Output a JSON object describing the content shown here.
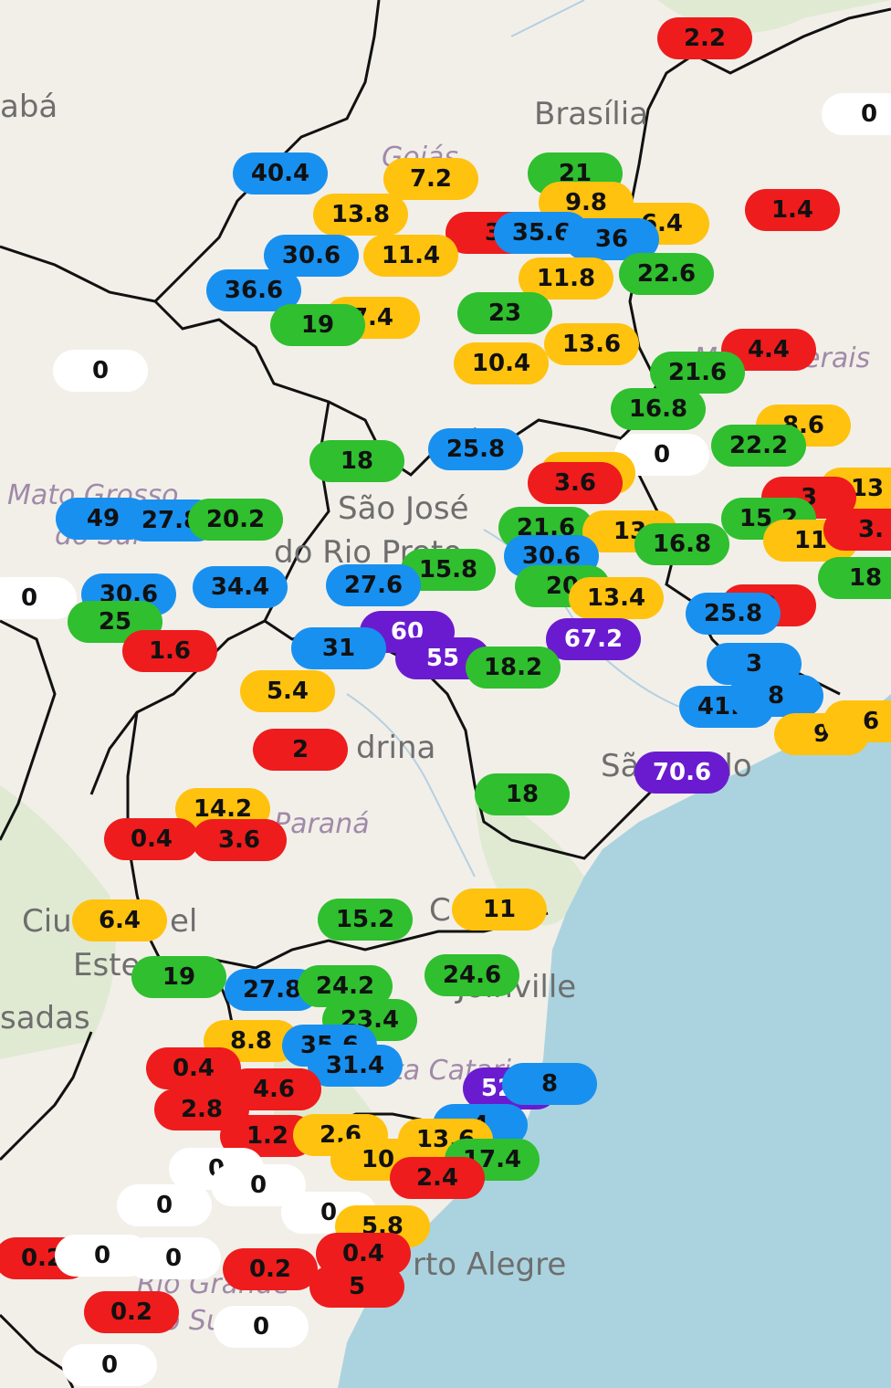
{
  "colors": {
    "red": "#ee1c1c",
    "yellow": "#ffc20e",
    "green": "#2fbf2f",
    "blue": "#1890f0",
    "purple": "#6a1bd0",
    "white": "#ffffff",
    "sea": "#aad3df",
    "land": "#f2efe9"
  },
  "place_labels": [
    {
      "text": "abá"
    },
    {
      "text": "Brasília"
    },
    {
      "text": "Goiás"
    },
    {
      "text": "Mato Grosso"
    },
    {
      "text": "do Sul"
    },
    {
      "text": "São José"
    },
    {
      "text": "do Rio Preto"
    },
    {
      "text": "Minas Gerais"
    },
    {
      "text": "drina"
    },
    {
      "text": "São Paulo"
    },
    {
      "text": "Paraná"
    },
    {
      "text": "Ciu"
    },
    {
      "text": "el"
    },
    {
      "text": "Este"
    },
    {
      "text": "sadas"
    },
    {
      "text": "C"
    },
    {
      "text": "Joinville"
    },
    {
      "text": "ta Catarina"
    },
    {
      "text": "rto Alegre"
    },
    {
      "text": "Rio Grande"
    },
    {
      "text": "do Sul"
    }
  ],
  "rain_markers": [
    {
      "value": "2.2",
      "color": "red"
    },
    {
      "value": "0",
      "color": "white"
    },
    {
      "value": "40.4",
      "color": "blue"
    },
    {
      "value": "7.2",
      "color": "yellow"
    },
    {
      "value": "21",
      "color": "green"
    },
    {
      "value": "13.8",
      "color": "yellow"
    },
    {
      "value": "9.8",
      "color": "yellow"
    },
    {
      "value": "6.4",
      "color": "yellow"
    },
    {
      "value": "1.4",
      "color": "red"
    },
    {
      "value": "3",
      "color": "red"
    },
    {
      "value": "35.6",
      "color": "blue"
    },
    {
      "value": "36",
      "color": "blue"
    },
    {
      "value": "30.6",
      "color": "blue"
    },
    {
      "value": "11.4",
      "color": "yellow"
    },
    {
      "value": "11.8",
      "color": "yellow"
    },
    {
      "value": "22.6",
      "color": "green"
    },
    {
      "value": "36.6",
      "color": "blue"
    },
    {
      "value": "7.4",
      "color": "yellow"
    },
    {
      "value": "19",
      "color": "green"
    },
    {
      "value": "23",
      "color": "green"
    },
    {
      "value": "0",
      "color": "white"
    },
    {
      "value": "13.6",
      "color": "yellow"
    },
    {
      "value": "4.4",
      "color": "red"
    },
    {
      "value": "10.4",
      "color": "yellow"
    },
    {
      "value": "21.6",
      "color": "green"
    },
    {
      "value": "16.8",
      "color": "green"
    },
    {
      "value": "8.6",
      "color": "yellow"
    },
    {
      "value": "0",
      "color": "white"
    },
    {
      "value": "22.2",
      "color": "green"
    },
    {
      "value": "18",
      "color": "green"
    },
    {
      "value": "25.8",
      "color": "blue"
    },
    {
      "value": "6.4",
      "color": "yellow"
    },
    {
      "value": "3.6",
      "color": "red"
    },
    {
      "value": "13",
      "color": "yellow"
    },
    {
      "value": "3",
      "color": "red"
    },
    {
      "value": "49",
      "color": "blue"
    },
    {
      "value": "27.8",
      "color": "blue"
    },
    {
      "value": "20.2",
      "color": "green"
    },
    {
      "value": "21.6",
      "color": "green"
    },
    {
      "value": "13",
      "color": "yellow"
    },
    {
      "value": "16.8",
      "color": "green"
    },
    {
      "value": "15.2",
      "color": "green"
    },
    {
      "value": "11",
      "color": "yellow"
    },
    {
      "value": "3.",
      "color": "red"
    },
    {
      "value": "30.6",
      "color": "blue"
    },
    {
      "value": "15.8",
      "color": "green"
    },
    {
      "value": "27.6",
      "color": "blue"
    },
    {
      "value": "34.4",
      "color": "blue"
    },
    {
      "value": "0",
      "color": "white"
    },
    {
      "value": "30.6",
      "color": "blue"
    },
    {
      "value": "20",
      "color": "green"
    },
    {
      "value": "13.4",
      "color": "yellow"
    },
    {
      "value": "2",
      "color": "red"
    },
    {
      "value": "25.8",
      "color": "blue"
    },
    {
      "value": "18",
      "color": "green"
    },
    {
      "value": "25",
      "color": "green"
    },
    {
      "value": "60",
      "color": "purple"
    },
    {
      "value": "67.2",
      "color": "purple"
    },
    {
      "value": "1.6",
      "color": "red"
    },
    {
      "value": "31",
      "color": "blue"
    },
    {
      "value": "55",
      "color": "purple"
    },
    {
      "value": "18.2",
      "color": "green"
    },
    {
      "value": "3",
      "color": "blue"
    },
    {
      "value": "5.4",
      "color": "yellow"
    },
    {
      "value": "41.4",
      "color": "blue"
    },
    {
      "value": "8",
      "color": "blue"
    },
    {
      "value": "9",
      "color": "yellow"
    },
    {
      "value": "6",
      "color": "yellow"
    },
    {
      "value": "2",
      "color": "red"
    },
    {
      "value": "70.6",
      "color": "purple"
    },
    {
      "value": "18",
      "color": "green"
    },
    {
      "value": "14.2",
      "color": "yellow"
    },
    {
      "value": "0.4",
      "color": "red"
    },
    {
      "value": "3.6",
      "color": "red"
    },
    {
      "value": "11",
      "color": "yellow"
    },
    {
      "value": "6.4",
      "color": "yellow"
    },
    {
      "value": "15.2",
      "color": "green"
    },
    {
      "value": "24.6",
      "color": "green"
    },
    {
      "value": "19",
      "color": "green"
    },
    {
      "value": "27.8",
      "color": "blue"
    },
    {
      "value": "24.2",
      "color": "green"
    },
    {
      "value": "23.4",
      "color": "green"
    },
    {
      "value": "8.8",
      "color": "yellow"
    },
    {
      "value": "35.6",
      "color": "blue"
    },
    {
      "value": "31.4",
      "color": "blue"
    },
    {
      "value": "0.4",
      "color": "red"
    },
    {
      "value": "4.6",
      "color": "red"
    },
    {
      "value": "52.4",
      "color": "purple"
    },
    {
      "value": "8",
      "color": "blue"
    },
    {
      "value": "2.8",
      "color": "red"
    },
    {
      "value": "4",
      "color": "blue"
    },
    {
      "value": "1.2",
      "color": "red"
    },
    {
      "value": "2.6",
      "color": "yellow"
    },
    {
      "value": "13.6",
      "color": "yellow"
    },
    {
      "value": "17.4",
      "color": "green"
    },
    {
      "value": "10",
      "color": "yellow"
    },
    {
      "value": "2.4",
      "color": "red"
    },
    {
      "value": "0",
      "color": "white"
    },
    {
      "value": "0",
      "color": "white"
    },
    {
      "value": "0",
      "color": "white"
    },
    {
      "value": "0",
      "color": "white"
    },
    {
      "value": "5.8",
      "color": "yellow"
    },
    {
      "value": "0.4",
      "color": "red"
    },
    {
      "value": "0.2",
      "color": "red"
    },
    {
      "value": "0",
      "color": "white"
    },
    {
      "value": "0",
      "color": "white"
    },
    {
      "value": "0.2",
      "color": "red"
    },
    {
      "value": "5",
      "color": "red"
    },
    {
      "value": "0.2",
      "color": "red"
    },
    {
      "value": "0",
      "color": "white"
    },
    {
      "value": "0",
      "color": "white"
    }
  ]
}
